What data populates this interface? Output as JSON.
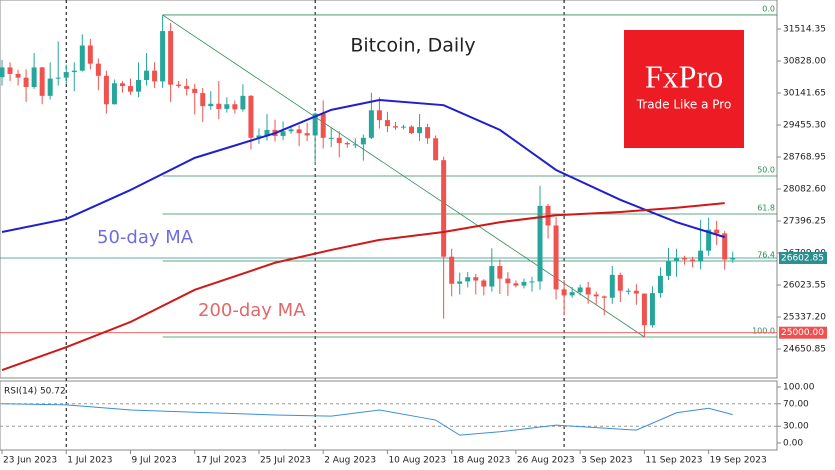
{
  "chart_data": [
    {
      "type": "candlestick",
      "title": "Bitcoin, Daily",
      "x": [
        "2023-06-23",
        "2023-06-24",
        "2023-06-25",
        "2023-06-26",
        "2023-06-27",
        "2023-06-28",
        "2023-06-29",
        "2023-06-30",
        "2023-07-01",
        "2023-07-02",
        "2023-07-03",
        "2023-07-04",
        "2023-07-05",
        "2023-07-06",
        "2023-07-07",
        "2023-07-08",
        "2023-07-09",
        "2023-07-10",
        "2023-07-11",
        "2023-07-12",
        "2023-07-13",
        "2023-07-14",
        "2023-07-15",
        "2023-07-16",
        "2023-07-17",
        "2023-07-18",
        "2023-07-19",
        "2023-07-20",
        "2023-07-21",
        "2023-07-22",
        "2023-07-23",
        "2023-07-24",
        "2023-07-25",
        "2023-07-26",
        "2023-07-27",
        "2023-07-28",
        "2023-07-29",
        "2023-07-30",
        "2023-07-31",
        "2023-08-01",
        "2023-08-02",
        "2023-08-03",
        "2023-08-04",
        "2023-08-05",
        "2023-08-06",
        "2023-08-07",
        "2023-08-08",
        "2023-08-09",
        "2023-08-10",
        "2023-08-11",
        "2023-08-12",
        "2023-08-13",
        "2023-08-14",
        "2023-08-15",
        "2023-08-16",
        "2023-08-17",
        "2023-08-18",
        "2023-08-19",
        "2023-08-20",
        "2023-08-21",
        "2023-08-22",
        "2023-08-23",
        "2023-08-24",
        "2023-08-25",
        "2023-08-26",
        "2023-08-27",
        "2023-08-28",
        "2023-08-29",
        "2023-08-30",
        "2023-08-31",
        "2023-09-01",
        "2023-09-02",
        "2023-09-03",
        "2023-09-04",
        "2023-09-05",
        "2023-09-06",
        "2023-09-07",
        "2023-09-08",
        "2023-09-09",
        "2023-09-10",
        "2023-09-11",
        "2023-09-12",
        "2023-09-13",
        "2023-09-14",
        "2023-09-15",
        "2023-09-16",
        "2023-09-17",
        "2023-09-18",
        "2023-09-19",
        "2023-09-20",
        "2023-09-21",
        "2023-09-22"
      ],
      "open": [
        30480,
        30690,
        30550,
        30470,
        30270,
        30690,
        30080,
        30450,
        30470,
        30590,
        30620,
        31160,
        30770,
        30510,
        29900,
        30350,
        30290,
        30170,
        30420,
        30620,
        30390,
        31470,
        30320,
        30290,
        30230,
        30140,
        29860,
        29910,
        29800,
        29900,
        29790,
        30080,
        29180,
        29230,
        29350,
        29220,
        29320,
        29360,
        29280,
        29230,
        29700,
        29180,
        29180,
        29070,
        29040,
        29040,
        29180,
        29770,
        29560,
        29430,
        29400,
        29420,
        29280,
        29410,
        29170,
        28700,
        26630,
        26050,
        26100,
        26190,
        26120,
        25990,
        26430,
        26160,
        26060,
        26010,
        26090,
        26100,
        27720,
        27300,
        25930,
        25800,
        25870,
        25970,
        25820,
        25780,
        25750,
        26240,
        25900,
        25900,
        25840,
        25160,
        25850,
        26220,
        26530,
        26600,
        26570,
        26530,
        26760,
        27210,
        27130,
        26570
      ],
      "high": [
        30850,
        30800,
        30640,
        30650,
        31000,
        30700,
        30800,
        31250,
        30750,
        30800,
        31400,
        31300,
        30880,
        30620,
        30430,
        30400,
        30450,
        30800,
        31000,
        30800,
        31815,
        31640,
        30400,
        30450,
        30340,
        30250,
        30180,
        30400,
        30050,
        29980,
        30330,
        30100,
        29380,
        29690,
        29570,
        29530,
        29410,
        29450,
        29500,
        29720,
        29980,
        29410,
        29320,
        29100,
        29170,
        29250,
        30150,
        30050,
        29740,
        29520,
        29460,
        29450,
        29690,
        29480,
        29230,
        28780,
        26800,
        26290,
        26300,
        26260,
        26150,
        26810,
        26570,
        26300,
        26120,
        26160,
        26200,
        28150,
        27760,
        27480,
        26130,
        25980,
        26030,
        26090,
        25880,
        25800,
        26430,
        26290,
        25950,
        26040,
        25840,
        26000,
        26400,
        26820,
        26800,
        26650,
        26630,
        27420,
        27470,
        27400,
        27180,
        26740
      ],
      "low": [
        30300,
        30400,
        30300,
        29950,
        30230,
        29900,
        30000,
        30300,
        30330,
        30180,
        30600,
        30650,
        30200,
        29700,
        29890,
        30150,
        30100,
        30050,
        30300,
        30250,
        30250,
        29950,
        30250,
        30090,
        29680,
        29520,
        29780,
        29580,
        29720,
        29700,
        29740,
        28930,
        29050,
        29120,
        29100,
        29130,
        29260,
        29000,
        29110,
        28600,
        28950,
        28980,
        28760,
        28970,
        28960,
        28690,
        29150,
        29380,
        29300,
        29350,
        29360,
        29260,
        29110,
        29050,
        28690,
        25300,
        25780,
        25820,
        25970,
        25820,
        25800,
        25880,
        25830,
        25790,
        25970,
        25950,
        25880,
        25920,
        27020,
        25710,
        25370,
        25750,
        25800,
        25620,
        25600,
        25370,
        25620,
        25660,
        25820,
        25600,
        24908,
        25110,
        25750,
        26130,
        26200,
        26460,
        26400,
        26360,
        26650,
        26880,
        26350,
        26500
      ],
      "close": [
        30690,
        30550,
        30470,
        30270,
        30690,
        30080,
        30450,
        30470,
        30590,
        30620,
        31160,
        30770,
        30510,
        29900,
        30350,
        30290,
        30170,
        30420,
        30620,
        30390,
        31470,
        30320,
        30290,
        30230,
        30140,
        29860,
        29910,
        29800,
        29900,
        29790,
        30080,
        29180,
        29230,
        29350,
        29220,
        29320,
        29360,
        29280,
        29230,
        29700,
        29180,
        29180,
        29070,
        29040,
        29040,
        29180,
        29770,
        29560,
        29430,
        29400,
        29420,
        29280,
        29410,
        29170,
        28700,
        26630,
        26050,
        26100,
        26190,
        26120,
        25990,
        26430,
        26160,
        26060,
        26010,
        26090,
        26100,
        27720,
        27300,
        25930,
        25800,
        25870,
        25970,
        25820,
        25780,
        25750,
        26240,
        25900,
        25900,
        25840,
        25160,
        25850,
        26220,
        26530,
        26600,
        26570,
        26530,
        26760,
        27210,
        27130,
        26570,
        26602.85
      ],
      "up_color": "#26a69a",
      "down_color": "#ef5350",
      "ylim": [
        24050,
        32050
      ],
      "yticks": [
        {
          "value": 31514.35,
          "label": "31514.35"
        },
        {
          "value": 30828,
          "label": "30828.00"
        },
        {
          "value": 30141.65,
          "label": "30141.65"
        },
        {
          "value": 29455.3,
          "label": "29455.30"
        },
        {
          "value": 28768.95,
          "label": "28768.95"
        },
        {
          "value": 28082.6,
          "label": "28082.60"
        },
        {
          "value": 27396.25,
          "label": "27396.25"
        },
        {
          "value": 26709.9,
          "label": "26709.90"
        },
        {
          "value": 26023.55,
          "label": "26023.55"
        },
        {
          "value": 25337.2,
          "label": "25337.20"
        },
        {
          "value": 24650.85,
          "label": "24650.85"
        }
      ],
      "xticks": [
        {
          "value": "2023-06-23",
          "label": "23 Jun 2023"
        },
        {
          "value": "2023-07-01",
          "label": "1 Jul 2023"
        },
        {
          "value": "2023-07-09",
          "label": "9 Jul 2023"
        },
        {
          "value": "2023-07-17",
          "label": "17 Jul 2023"
        },
        {
          "value": "2023-07-25",
          "label": "25 Jul 2023"
        },
        {
          "value": "2023-08-02",
          "label": "2 Aug 2023"
        },
        {
          "value": "2023-08-10",
          "label": "10 Aug 2023"
        },
        {
          "value": "2023-08-18",
          "label": "18 Aug 2023"
        },
        {
          "value": "2023-08-26",
          "label": "26 Aug 2023"
        },
        {
          "value": "2023-09-03",
          "label": "3 Sep 2023"
        },
        {
          "value": "2023-09-11",
          "label": "11 Sep 2023"
        },
        {
          "value": "2023-09-19",
          "label": "19 Sep 2023"
        }
      ],
      "vlines": [
        "2023-07-01",
        "2023-08-01",
        "2023-09-01"
      ],
      "series": [
        {
          "name": "50-day MA",
          "color": "#1f1fd0",
          "x": [
            "2023-06-23",
            "2023-07-01",
            "2023-07-09",
            "2023-07-17",
            "2023-07-27",
            "2023-08-03",
            "2023-08-09",
            "2023-08-17",
            "2023-08-24",
            "2023-08-31",
            "2023-09-08",
            "2023-09-15",
            "2023-09-21"
          ],
          "values": [
            27160,
            27440,
            28060,
            28750,
            29280,
            29780,
            29990,
            29880,
            29350,
            28490,
            27850,
            27370,
            27050
          ]
        },
        {
          "name": "200-day MA",
          "color": "#d01818",
          "x": [
            "2023-06-23",
            "2023-07-01",
            "2023-07-09",
            "2023-07-17",
            "2023-07-27",
            "2023-08-03",
            "2023-08-09",
            "2023-08-17",
            "2023-08-24",
            "2023-08-31",
            "2023-09-08",
            "2023-09-15",
            "2023-09-21"
          ],
          "values": [
            24200,
            24690,
            25230,
            25920,
            26500,
            26775,
            26990,
            27160,
            27370,
            27520,
            27590,
            27680,
            27780
          ]
        }
      ],
      "fib_anchor_x": [
        "2023-07-13",
        "2023-09-11"
      ],
      "fib_color": "#2e8b57",
      "fib_levels": [
        {
          "level": "0.0",
          "value": 31815
        },
        {
          "level": "50.0",
          "value": 28361
        },
        {
          "level": "61.8",
          "value": 27546
        },
        {
          "level": "76.4",
          "value": 26538
        },
        {
          "level": "100.0",
          "value": 24908
        }
      ],
      "hlines": [
        {
          "value": 26602.85,
          "label": "26602.85",
          "color": "#2a8f8f"
        },
        {
          "value": 25000,
          "label": "25000.00",
          "color": "#f05050"
        }
      ]
    },
    {
      "type": "line",
      "title": "RSI(14) 50.72",
      "color": "#3a8fd8",
      "x": [
        "2023-06-23",
        "2023-07-01",
        "2023-07-09",
        "2023-07-17",
        "2023-07-27",
        "2023-08-03",
        "2023-08-09",
        "2023-08-16",
        "2023-08-19",
        "2023-08-24",
        "2023-08-31",
        "2023-09-10",
        "2023-09-15",
        "2023-09-19",
        "2023-09-22"
      ],
      "values": [
        70,
        68,
        59,
        55,
        50,
        48,
        59,
        41,
        14,
        20,
        32,
        23,
        54,
        62,
        50.72
      ],
      "ylim": [
        0,
        100
      ],
      "yticks": [
        {
          "value": 100,
          "label": "100.00"
        },
        {
          "value": 70,
          "label": "70.00"
        },
        {
          "value": 30,
          "label": "30.00"
        },
        {
          "value": 0,
          "label": "0.00"
        }
      ]
    }
  ],
  "logo": {
    "name": "FxPro",
    "tagline": "Trade Like a Pro"
  }
}
